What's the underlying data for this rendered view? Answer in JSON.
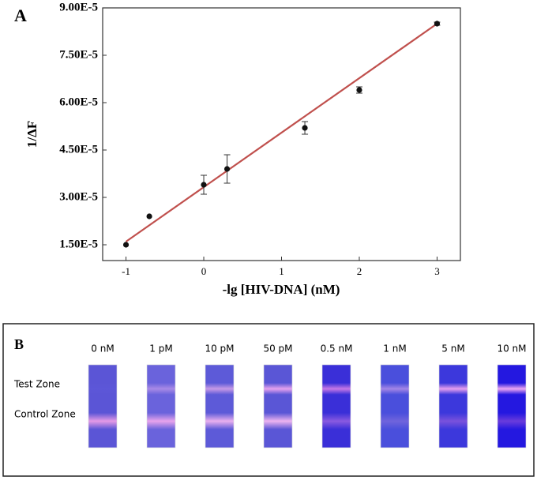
{
  "chart_data": {
    "type": "scatter",
    "title": "A",
    "xlabel": "-lg [HIV-DNA] (nM)",
    "ylabel": "1/ΔF",
    "x": [
      -1,
      -0.7,
      0,
      0.3,
      1.3,
      2,
      3
    ],
    "values": [
      1.5e-05,
      2.4e-05,
      3.4e-05,
      3.9e-05,
      5.2e-05,
      6.4e-05,
      8.5e-05
    ],
    "errors": [
      0,
      0,
      3e-06,
      4.5e-06,
      2e-06,
      1e-06,
      5e-07
    ],
    "color": "#111111",
    "fit": {
      "x": [
        -1,
        3
      ],
      "values": [
        1.6e-05,
        8.5e-05
      ],
      "color": "#c0504d"
    },
    "xlim": [
      -1.3,
      3.3
    ],
    "ylim": [
      1e-05,
      9e-05
    ],
    "xticks": [
      -1,
      0,
      1,
      2,
      3
    ],
    "yticks": [
      {
        "value": 1.5e-05,
        "label": "1.50E-5"
      },
      {
        "value": 3e-05,
        "label": "3.00E-5"
      },
      {
        "value": 4.5e-05,
        "label": "4.50E-5"
      },
      {
        "value": 6e-05,
        "label": "6.00E-5"
      },
      {
        "value": 7.5e-05,
        "label": "7.50E-5"
      },
      {
        "value": 9e-05,
        "label": "9.00E-5"
      }
    ]
  },
  "panel_b": {
    "label": "B",
    "row_labels": [
      "Test Zone",
      "Control Zone"
    ],
    "strips": [
      {
        "label": "0 nM",
        "base": "#5b55d6",
        "test": "#5d57d8",
        "control": "#e59ae6"
      },
      {
        "label": "1 pM",
        "base": "#6a63dc",
        "test": "#a98ae6",
        "control": "#e8a4ec"
      },
      {
        "label": "10 pM",
        "base": "#5d5ad8",
        "test": "#c79ae6",
        "control": "#eab0ee"
      },
      {
        "label": "50 pM",
        "base": "#5a56d6",
        "test": "#e7a2ee",
        "control": "#eeb4f0"
      },
      {
        "label": "0.5 nM",
        "base": "#3a2fd8",
        "test": "#c878e6",
        "control": "#8a5ae0"
      },
      {
        "label": "1 nM",
        "base": "#4a4fdc",
        "test": "#a486e6",
        "control": "#7064dc"
      },
      {
        "label": "5 nM",
        "base": "#3c38dc",
        "test": "#e8a0ee",
        "control": "#7a52dc"
      },
      {
        "label": "10 nM",
        "base": "#2418e0",
        "test": "#f0a8f2",
        "control": "#6a3cdc"
      }
    ]
  }
}
